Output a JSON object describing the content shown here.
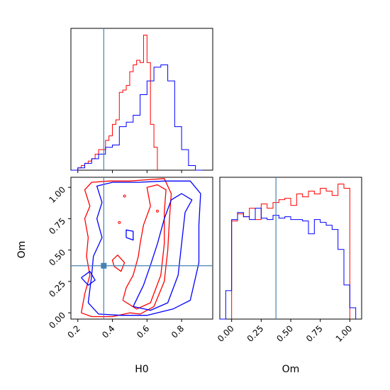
{
  "chart_data": {
    "type": "corner",
    "parameters": [
      "H0",
      "Om"
    ],
    "truths": {
      "H0": 0.35,
      "Om": 0.375
    },
    "colors": {
      "series_red": "#ff0000",
      "series_blue": "#0000ff",
      "truth": "#4682b4",
      "axes": "#000000"
    },
    "panels": [
      {
        "id": "hist-H0",
        "type": "histogram-step",
        "xlim": [
          0.16,
          0.98
        ],
        "xticks": [
          0.2,
          0.4,
          0.6,
          0.8
        ],
        "x_tick_labels_shown": false,
        "y_ticks_shown": false,
        "series": [
          {
            "color": "#ff0000",
            "bin_edges": [
              0.2,
              0.22,
              0.24,
              0.26,
              0.28,
              0.3,
              0.32,
              0.34,
              0.36,
              0.38,
              0.4,
              0.42,
              0.44,
              0.46,
              0.48,
              0.5,
              0.52,
              0.54,
              0.56,
              0.58,
              0.6,
              0.62,
              0.64,
              0.66
            ],
            "counts": [
              1,
              2,
              3,
              4,
              5,
              7,
              9,
              9,
              13,
              15,
              20,
              22,
              34,
              35,
              37,
              43,
              46,
              48,
              47,
              59,
              47,
              20,
              10
            ]
          },
          {
            "color": "#0000ff",
            "bin_edges": [
              0.16,
              0.2,
              0.24,
              0.28,
              0.32,
              0.36,
              0.4,
              0.44,
              0.48,
              0.52,
              0.56,
              0.6,
              0.64,
              0.68,
              0.72,
              0.76,
              0.8,
              0.84,
              0.88,
              0.92
            ],
            "counts": [
              0,
              1,
              3,
              5,
              7,
              10,
              11,
              19,
              21,
              24,
              33,
              39,
              45,
              46,
              39,
              19,
              9,
              2,
              0
            ]
          }
        ]
      },
      {
        "id": "contour-H0-Om",
        "type": "contour",
        "xlabel": "H0",
        "ylabel": "Om",
        "xlim": [
          0.16,
          0.98
        ],
        "ylim": [
          -0.05,
          1.08
        ],
        "xticks": [
          "0.2",
          "0.4",
          "0.6",
          "0.8"
        ],
        "yticks": [
          "0.00",
          "0.25",
          "0.50",
          "0.75",
          "1.00"
        ],
        "truth_marker": [
          0.35,
          0.375
        ],
        "contours": [
          {
            "color": "#ff0000",
            "level": "outer",
            "points": [
              [
                0.22,
                0.0
              ],
              [
                0.28,
                -0.03
              ],
              [
                0.4,
                -0.03
              ],
              [
                0.5,
                0.0
              ],
              [
                0.56,
                -0.01
              ],
              [
                0.64,
                0.05
              ],
              [
                0.7,
                0.25
              ],
              [
                0.72,
                0.5
              ],
              [
                0.73,
                0.75
              ],
              [
                0.74,
                0.95
              ],
              [
                0.7,
                1.07
              ],
              [
                0.6,
                1.06
              ],
              [
                0.5,
                1.05
              ],
              [
                0.38,
                1.05
              ],
              [
                0.28,
                1.04
              ],
              [
                0.24,
                0.98
              ],
              [
                0.27,
                0.85
              ],
              [
                0.24,
                0.75
              ],
              [
                0.26,
                0.6
              ],
              [
                0.25,
                0.45
              ],
              [
                0.27,
                0.3
              ],
              [
                0.24,
                0.15
              ],
              [
                0.22,
                0.0
              ]
            ]
          },
          {
            "color": "#ff0000",
            "level": "inner",
            "points": [
              [
                0.46,
                0.1
              ],
              [
                0.54,
                0.03
              ],
              [
                0.62,
                0.08
              ],
              [
                0.68,
                0.3
              ],
              [
                0.7,
                0.55
              ],
              [
                0.7,
                0.8
              ],
              [
                0.71,
                0.98
              ],
              [
                0.66,
                1.02
              ],
              [
                0.6,
                1.0
              ],
              [
                0.62,
                0.85
              ],
              [
                0.58,
                0.7
              ],
              [
                0.56,
                0.55
              ],
              [
                0.55,
                0.45
              ],
              [
                0.52,
                0.3
              ],
              [
                0.48,
                0.2
              ],
              [
                0.46,
                0.1
              ]
            ]
          },
          {
            "color": "#ff0000",
            "level": "island",
            "points": [
              [
                0.41,
                0.37
              ],
              [
                0.45,
                0.33
              ],
              [
                0.47,
                0.4
              ],
              [
                0.43,
                0.46
              ],
              [
                0.4,
                0.42
              ],
              [
                0.41,
                0.37
              ]
            ]
          },
          {
            "color": "#0000ff",
            "level": "outer",
            "points": [
              [
                0.26,
                0.08
              ],
              [
                0.32,
                -0.01
              ],
              [
                0.45,
                -0.02
              ],
              [
                0.6,
                -0.02
              ],
              [
                0.75,
                0.03
              ],
              [
                0.85,
                0.1
              ],
              [
                0.9,
                0.4
              ],
              [
                0.9,
                0.7
              ],
              [
                0.91,
                0.95
              ],
              [
                0.85,
                1.05
              ],
              [
                0.7,
                1.05
              ],
              [
                0.55,
                1.04
              ],
              [
                0.4,
                1.04
              ],
              [
                0.31,
                1.01
              ],
              [
                0.34,
                0.88
              ],
              [
                0.31,
                0.75
              ],
              [
                0.34,
                0.6
              ],
              [
                0.29,
                0.45
              ],
              [
                0.28,
                0.3
              ],
              [
                0.26,
                0.08
              ]
            ]
          },
          {
            "color": "#0000ff",
            "level": "inner",
            "points": [
              [
                0.52,
                0.05
              ],
              [
                0.62,
                0.02
              ],
              [
                0.72,
                0.08
              ],
              [
                0.78,
                0.3
              ],
              [
                0.8,
                0.55
              ],
              [
                0.82,
                0.8
              ],
              [
                0.86,
                0.9
              ],
              [
                0.8,
                0.95
              ],
              [
                0.74,
                0.9
              ],
              [
                0.7,
                0.75
              ],
              [
                0.66,
                0.55
              ],
              [
                0.62,
                0.38
              ],
              [
                0.58,
                0.22
              ],
              [
                0.52,
                0.05
              ]
            ]
          },
          {
            "color": "#0000ff",
            "level": "island",
            "points": [
              [
                0.48,
                0.6
              ],
              [
                0.52,
                0.58
              ],
              [
                0.52,
                0.65
              ],
              [
                0.48,
                0.66
              ],
              [
                0.48,
                0.6
              ]
            ]
          },
          {
            "color": "#0000ff",
            "level": "island",
            "points": [
              [
                0.22,
                0.28
              ],
              [
                0.26,
                0.22
              ],
              [
                0.3,
                0.26
              ],
              [
                0.27,
                0.33
              ],
              [
                0.22,
                0.28
              ]
            ]
          }
        ]
      },
      {
        "id": "hist-Om",
        "type": "histogram-step",
        "xlabel": "Om",
        "xlim": [
          -0.1,
          1.1
        ],
        "xticks": [
          "0.00",
          "0.25",
          "0.50",
          "0.75",
          "1.00"
        ],
        "y_ticks_shown": false,
        "series": [
          {
            "color": "#ff0000",
            "bin_edges": [
              0.0,
              0.05,
              0.1,
              0.15,
              0.2,
              0.25,
              0.3,
              0.35,
              0.4,
              0.45,
              0.5,
              0.55,
              0.6,
              0.65,
              0.7,
              0.75,
              0.8,
              0.85,
              0.9,
              0.95,
              1.0
            ],
            "counts": [
              69,
              74,
              72,
              78,
              70,
              81,
              78,
              82,
              84,
              85,
              80,
              88,
              86,
              90,
              88,
              92,
              90,
              87,
              95,
              92
            ]
          },
          {
            "color": "#0000ff",
            "bin_edges": [
              -0.1,
              -0.05,
              0.0,
              0.05,
              0.1,
              0.15,
              0.2,
              0.25,
              0.3,
              0.35,
              0.4,
              0.45,
              0.5,
              0.55,
              0.6,
              0.65,
              0.7,
              0.75,
              0.8,
              0.85,
              0.9,
              0.95,
              1.0,
              1.05
            ],
            "counts": [
              0,
              20,
              70,
              75,
              72,
              70,
              78,
              71,
              70,
              73,
              71,
              72,
              70,
              70,
              69,
              60,
              70,
              68,
              66,
              63,
              49,
              24,
              8
            ]
          }
        ]
      }
    ]
  }
}
